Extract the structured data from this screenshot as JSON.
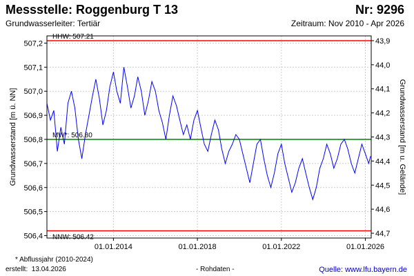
{
  "header": {
    "title": "Messstelle: Roggenburg T 13",
    "number": "Nr: 9296",
    "aquifer": "Grundwasserleiter: Tertiär",
    "period": "Zeitraum: Nov 2010 - Apr 2026"
  },
  "footer": {
    "footnote": "* Abflussjahr (2010-2024)",
    "created_label": "erstellt:",
    "created_date": "13.04.2026",
    "raw_note": "- Rohdaten -",
    "source": "Quelle: www.lfu.bayern.de"
  },
  "colors": {
    "series": "#0000ff",
    "hhw": "#ff0000",
    "nnw": "#ff0000",
    "mw": "#008000",
    "grid": "#cccccc"
  },
  "chart_data": {
    "type": "line",
    "ylabel": "Grundwasserstand [m ü. NN]",
    "ylabel_right": "Grundwasserstand [m u. Gelände]",
    "ylim": [
      506.39,
      507.23
    ],
    "ylim_right": [
      43.88,
      44.72
    ],
    "yticks_left": [
      "506,4",
      "506,5",
      "506,6",
      "506,7",
      "506,8",
      "506,9",
      "507,0",
      "507,1",
      "507,2"
    ],
    "yticks_right": [
      "43,9",
      "44,0",
      "44,1",
      "44,2",
      "44,3",
      "44,4",
      "44,5",
      "44,6",
      "44,7"
    ],
    "xlim": [
      "2010-11-01",
      "2026-04-13"
    ],
    "xticks": [
      {
        "date": "2014-01-01",
        "label": "01.01.2014"
      },
      {
        "date": "2018-01-01",
        "label": "01.01.2018"
      },
      {
        "date": "2022-01-01",
        "label": "01.01.2022"
      },
      {
        "date": "2026-01-01",
        "label": "01.01.2026"
      }
    ],
    "grid": true,
    "reference_lines": [
      {
        "name": "HHW",
        "label": "HHW: 507.21",
        "value": 507.21
      },
      {
        "name": "MW",
        "label": "MW*: 506.80",
        "value": 506.8
      },
      {
        "name": "NNW",
        "label": "NNW: 506.42",
        "value": 506.42
      }
    ],
    "series": [
      {
        "x": [
          "2010-11",
          "2011-01",
          "2011-03",
          "2011-05",
          "2011-07",
          "2011-09",
          "2011-11",
          "2012-01",
          "2012-03",
          "2012-05",
          "2012-07",
          "2012-09",
          "2012-11",
          "2013-01",
          "2013-03",
          "2013-05",
          "2013-07",
          "2013-09",
          "2013-11",
          "2014-01",
          "2014-03",
          "2014-05",
          "2014-07",
          "2014-09",
          "2014-11",
          "2015-01",
          "2015-03",
          "2015-05",
          "2015-07",
          "2015-09",
          "2015-11",
          "2016-01",
          "2016-03",
          "2016-05",
          "2016-07",
          "2016-09",
          "2016-11",
          "2017-01",
          "2017-03",
          "2017-05",
          "2017-07",
          "2017-09",
          "2017-11",
          "2018-01",
          "2018-03",
          "2018-05",
          "2018-07",
          "2018-09",
          "2018-11",
          "2019-01",
          "2019-03",
          "2019-05",
          "2019-07",
          "2019-09",
          "2019-11",
          "2020-01",
          "2020-03",
          "2020-05",
          "2020-07",
          "2020-09",
          "2020-11",
          "2021-01",
          "2021-03",
          "2021-05",
          "2021-07",
          "2021-09",
          "2021-11",
          "2022-01",
          "2022-03",
          "2022-05",
          "2022-07",
          "2022-09",
          "2022-11",
          "2023-01",
          "2023-03",
          "2023-05",
          "2023-07",
          "2023-09",
          "2023-11",
          "2024-01",
          "2024-03",
          "2024-05",
          "2024-07",
          "2024-09",
          "2024-11",
          "2025-01",
          "2025-03",
          "2025-05",
          "2025-07",
          "2025-09",
          "2025-11",
          "2026-01",
          "2026-03",
          "2026-04"
        ],
        "y": [
          506.95,
          506.88,
          506.92,
          506.75,
          506.85,
          506.78,
          506.95,
          507.0,
          506.93,
          506.8,
          506.72,
          506.82,
          506.9,
          506.98,
          507.05,
          506.97,
          506.86,
          506.92,
          507.02,
          507.08,
          507.0,
          506.95,
          507.1,
          507.02,
          506.93,
          506.98,
          507.06,
          507.0,
          506.9,
          506.96,
          507.04,
          507.0,
          506.92,
          506.87,
          506.8,
          506.9,
          506.98,
          506.94,
          506.88,
          506.82,
          506.86,
          506.8,
          506.88,
          506.92,
          506.85,
          506.78,
          506.75,
          506.82,
          506.88,
          506.84,
          506.76,
          506.7,
          506.75,
          506.78,
          506.82,
          506.8,
          506.74,
          506.68,
          506.62,
          506.7,
          506.78,
          506.8,
          506.72,
          506.65,
          506.6,
          506.66,
          506.74,
          506.78,
          506.7,
          506.64,
          506.58,
          506.62,
          506.68,
          506.72,
          506.66,
          506.6,
          506.55,
          506.6,
          506.68,
          506.72,
          506.78,
          506.74,
          506.68,
          506.72,
          506.78,
          506.8,
          506.76,
          506.7,
          506.66,
          506.72,
          506.78,
          506.74,
          506.7,
          506.73
        ]
      }
    ]
  }
}
